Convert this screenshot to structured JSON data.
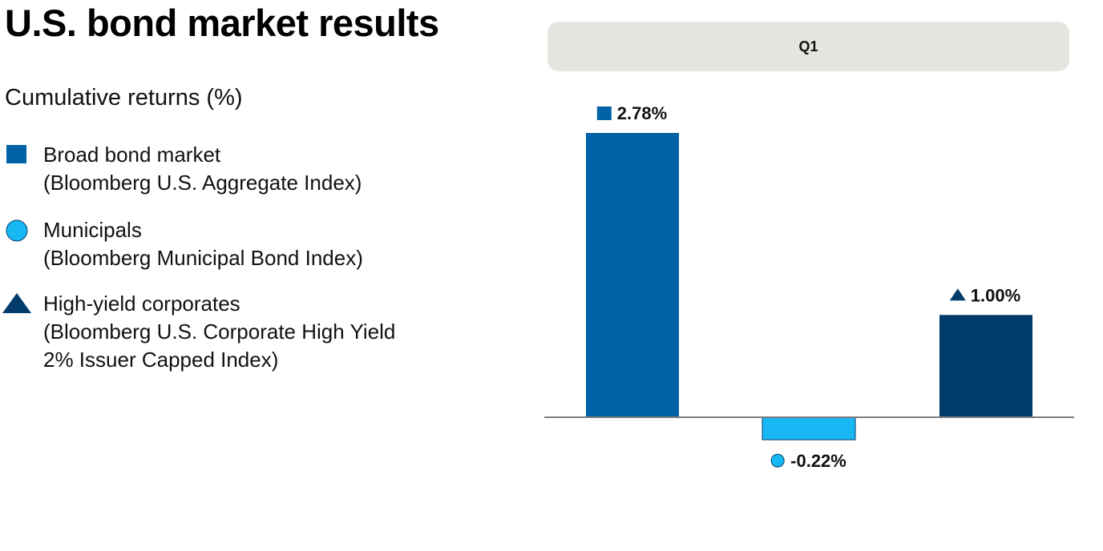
{
  "title": "U.S. bond market results",
  "subtitle": "Cumulative returns (%)",
  "legend": [
    {
      "name": "Broad bond market",
      "index": "(Bloomberg U.S. Aggregate Index)",
      "marker": "square-icon",
      "color": "#0062a6"
    },
    {
      "name": "Municipals",
      "index": "(Bloomberg Municipal Bond Index)",
      "marker": "circle-icon",
      "color": "#19b8f5"
    },
    {
      "name": "High-yield corporates",
      "index_line1": "(Bloomberg U.S. Corporate High Yield",
      "index_line2": "2% Issuer Capped Index)",
      "marker": "triangle-icon",
      "color": "#003b6b"
    }
  ],
  "chart_data": {
    "type": "bar",
    "panel_label": "Q1",
    "title": "U.S. bond market results",
    "ylabel": "Cumulative returns (%)",
    "categories": [
      "Broad bond market",
      "Municipals",
      "High-yield corporates"
    ],
    "values": [
      2.78,
      -0.22,
      1.0
    ],
    "value_labels": [
      "2.78%",
      "-0.22%",
      "1.00%"
    ],
    "markers": [
      "square-icon",
      "circle-icon",
      "triangle-icon"
    ],
    "colors": [
      "#0062a6",
      "#19b8f5",
      "#003b6b"
    ],
    "baseline": 0
  }
}
